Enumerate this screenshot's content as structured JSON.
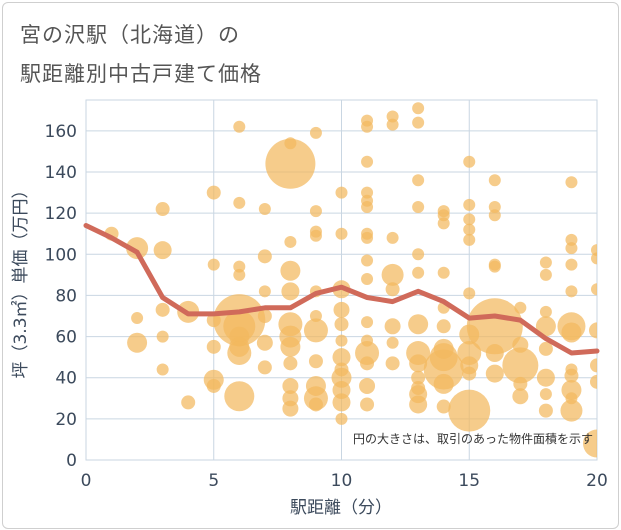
{
  "title_line1": "宮の沢駅（北海道）の",
  "title_line2": "駅距離別中古戸建て価格",
  "chart_data": {
    "type": "scatter",
    "title": "宮の沢駅（北海道）の駅距離別中古戸建て価格",
    "xlabel": "駅距離（分）",
    "ylabel": "坪（3.3㎡）単価（万円）",
    "xlim": [
      0,
      20
    ],
    "ylim": [
      0,
      175
    ],
    "xticks": [
      0,
      5,
      10,
      15,
      20
    ],
    "yticks": [
      0,
      20,
      40,
      60,
      80,
      100,
      120,
      140,
      160
    ],
    "note": "円の大きさは、取引のあった物件面積を示す",
    "colors": {
      "bubble": "#f3b85e",
      "line": "#d06a5a",
      "grid": "#c9d6e2"
    },
    "trend_line": {
      "x": [
        0,
        1,
        2,
        3,
        4,
        5,
        6,
        7,
        8,
        9,
        10,
        11,
        12,
        13,
        14,
        15,
        16,
        17,
        18,
        19,
        20
      ],
      "y": [
        114,
        108,
        101,
        79,
        71,
        71,
        72,
        74,
        74,
        81,
        84,
        79,
        77,
        82,
        77,
        69,
        70,
        68,
        59,
        52,
        53
      ]
    },
    "bubbles": [
      {
        "x": 1,
        "y": 110,
        "s": 7
      },
      {
        "x": 2,
        "y": 103,
        "s": 11
      },
      {
        "x": 2,
        "y": 69,
        "s": 6
      },
      {
        "x": 2,
        "y": 57,
        "s": 10
      },
      {
        "x": 3,
        "y": 122,
        "s": 7
      },
      {
        "x": 3,
        "y": 102,
        "s": 9
      },
      {
        "x": 3,
        "y": 73,
        "s": 7
      },
      {
        "x": 3,
        "y": 60,
        "s": 6
      },
      {
        "x": 3,
        "y": 44,
        "s": 6
      },
      {
        "x": 4,
        "y": 72,
        "s": 11
      },
      {
        "x": 4,
        "y": 28,
        "s": 7
      },
      {
        "x": 5,
        "y": 130,
        "s": 7
      },
      {
        "x": 5,
        "y": 95,
        "s": 6
      },
      {
        "x": 5,
        "y": 68,
        "s": 7
      },
      {
        "x": 5,
        "y": 55,
        "s": 7
      },
      {
        "x": 5,
        "y": 39,
        "s": 10
      },
      {
        "x": 5,
        "y": 36,
        "s": 7
      },
      {
        "x": 6,
        "y": 162,
        "s": 6
      },
      {
        "x": 6,
        "y": 125,
        "s": 6
      },
      {
        "x": 6,
        "y": 94,
        "s": 6
      },
      {
        "x": 6,
        "y": 90,
        "s": 6
      },
      {
        "x": 6,
        "y": 68,
        "s": 26
      },
      {
        "x": 6,
        "y": 65,
        "s": 16
      },
      {
        "x": 6,
        "y": 60,
        "s": 10
      },
      {
        "x": 6,
        "y": 55,
        "s": 10
      },
      {
        "x": 6,
        "y": 52,
        "s": 12
      },
      {
        "x": 6,
        "y": 31,
        "s": 15
      },
      {
        "x": 7,
        "y": 122,
        "s": 6
      },
      {
        "x": 7,
        "y": 99,
        "s": 7
      },
      {
        "x": 7,
        "y": 82,
        "s": 6
      },
      {
        "x": 7,
        "y": 70,
        "s": 7
      },
      {
        "x": 7,
        "y": 57,
        "s": 8
      },
      {
        "x": 7,
        "y": 45,
        "s": 7
      },
      {
        "x": 8,
        "y": 144,
        "s": 25
      },
      {
        "x": 8,
        "y": 154,
        "s": 6
      },
      {
        "x": 8,
        "y": 106,
        "s": 6
      },
      {
        "x": 8,
        "y": 92,
        "s": 10
      },
      {
        "x": 8,
        "y": 82,
        "s": 9
      },
      {
        "x": 8,
        "y": 66,
        "s": 12
      },
      {
        "x": 8,
        "y": 60,
        "s": 11
      },
      {
        "x": 8,
        "y": 55,
        "s": 10
      },
      {
        "x": 8,
        "y": 47,
        "s": 7
      },
      {
        "x": 8,
        "y": 36,
        "s": 8
      },
      {
        "x": 8,
        "y": 30,
        "s": 8
      },
      {
        "x": 8,
        "y": 25,
        "s": 8
      },
      {
        "x": 9,
        "y": 159,
        "s": 6
      },
      {
        "x": 9,
        "y": 121,
        "s": 6
      },
      {
        "x": 9,
        "y": 111,
        "s": 6
      },
      {
        "x": 9,
        "y": 109,
        "s": 6
      },
      {
        "x": 9,
        "y": 82,
        "s": 6
      },
      {
        "x": 9,
        "y": 70,
        "s": 6
      },
      {
        "x": 9,
        "y": 63,
        "s": 12
      },
      {
        "x": 9,
        "y": 48,
        "s": 7
      },
      {
        "x": 9,
        "y": 36,
        "s": 10
      },
      {
        "x": 9,
        "y": 30,
        "s": 12
      },
      {
        "x": 9,
        "y": 27,
        "s": 7
      },
      {
        "x": 10,
        "y": 130,
        "s": 6
      },
      {
        "x": 10,
        "y": 110,
        "s": 6
      },
      {
        "x": 10,
        "y": 83,
        "s": 9
      },
      {
        "x": 10,
        "y": 73,
        "s": 8
      },
      {
        "x": 10,
        "y": 66,
        "s": 7
      },
      {
        "x": 10,
        "y": 58,
        "s": 6
      },
      {
        "x": 10,
        "y": 50,
        "s": 9
      },
      {
        "x": 10,
        "y": 44,
        "s": 7
      },
      {
        "x": 10,
        "y": 40,
        "s": 10
      },
      {
        "x": 10,
        "y": 34,
        "s": 9
      },
      {
        "x": 10,
        "y": 28,
        "s": 9
      },
      {
        "x": 10,
        "y": 20,
        "s": 6
      },
      {
        "x": 11,
        "y": 165,
        "s": 6
      },
      {
        "x": 11,
        "y": 162,
        "s": 6
      },
      {
        "x": 11,
        "y": 145,
        "s": 6
      },
      {
        "x": 11,
        "y": 130,
        "s": 6
      },
      {
        "x": 11,
        "y": 126,
        "s": 6
      },
      {
        "x": 11,
        "y": 123,
        "s": 6
      },
      {
        "x": 11,
        "y": 110,
        "s": 6
      },
      {
        "x": 11,
        "y": 108,
        "s": 6
      },
      {
        "x": 11,
        "y": 97,
        "s": 6
      },
      {
        "x": 11,
        "y": 88,
        "s": 6
      },
      {
        "x": 11,
        "y": 67,
        "s": 6
      },
      {
        "x": 11,
        "y": 58,
        "s": 6
      },
      {
        "x": 11,
        "y": 52,
        "s": 12
      },
      {
        "x": 11,
        "y": 47,
        "s": 7
      },
      {
        "x": 11,
        "y": 36,
        "s": 8
      },
      {
        "x": 11,
        "y": 27,
        "s": 7
      },
      {
        "x": 12,
        "y": 167,
        "s": 6
      },
      {
        "x": 12,
        "y": 163,
        "s": 6
      },
      {
        "x": 12,
        "y": 108,
        "s": 6
      },
      {
        "x": 12,
        "y": 90,
        "s": 11
      },
      {
        "x": 12,
        "y": 83,
        "s": 7
      },
      {
        "x": 12,
        "y": 65,
        "s": 8
      },
      {
        "x": 12,
        "y": 57,
        "s": 6
      },
      {
        "x": 12,
        "y": 47,
        "s": 7
      },
      {
        "x": 13,
        "y": 171,
        "s": 6
      },
      {
        "x": 13,
        "y": 164,
        "s": 6
      },
      {
        "x": 13,
        "y": 136,
        "s": 6
      },
      {
        "x": 13,
        "y": 123,
        "s": 6
      },
      {
        "x": 13,
        "y": 100,
        "s": 6
      },
      {
        "x": 13,
        "y": 91,
        "s": 6
      },
      {
        "x": 13,
        "y": 66,
        "s": 10
      },
      {
        "x": 13,
        "y": 52,
        "s": 12
      },
      {
        "x": 13,
        "y": 47,
        "s": 9
      },
      {
        "x": 13,
        "y": 40,
        "s": 7
      },
      {
        "x": 13,
        "y": 35,
        "s": 7
      },
      {
        "x": 13,
        "y": 32,
        "s": 9
      },
      {
        "x": 13,
        "y": 27,
        "s": 9
      },
      {
        "x": 14,
        "y": 121,
        "s": 6
      },
      {
        "x": 14,
        "y": 119,
        "s": 6
      },
      {
        "x": 14,
        "y": 115,
        "s": 6
      },
      {
        "x": 14,
        "y": 91,
        "s": 6
      },
      {
        "x": 14,
        "y": 74,
        "s": 6
      },
      {
        "x": 14,
        "y": 65,
        "s": 7
      },
      {
        "x": 14,
        "y": 54,
        "s": 10
      },
      {
        "x": 14,
        "y": 50,
        "s": 14
      },
      {
        "x": 14,
        "y": 44,
        "s": 20
      },
      {
        "x": 14,
        "y": 37,
        "s": 10
      },
      {
        "x": 14,
        "y": 26,
        "s": 7
      },
      {
        "x": 15,
        "y": 145,
        "s": 6
      },
      {
        "x": 15,
        "y": 124,
        "s": 6
      },
      {
        "x": 15,
        "y": 117,
        "s": 6
      },
      {
        "x": 15,
        "y": 112,
        "s": 6
      },
      {
        "x": 15,
        "y": 107,
        "s": 6
      },
      {
        "x": 15,
        "y": 81,
        "s": 6
      },
      {
        "x": 15,
        "y": 61,
        "s": 10
      },
      {
        "x": 15,
        "y": 52,
        "s": 12
      },
      {
        "x": 15,
        "y": 46,
        "s": 9
      },
      {
        "x": 15,
        "y": 42,
        "s": 7
      },
      {
        "x": 15,
        "y": 24,
        "s": 21
      },
      {
        "x": 16,
        "y": 136,
        "s": 6
      },
      {
        "x": 16,
        "y": 123,
        "s": 6
      },
      {
        "x": 16,
        "y": 119,
        "s": 6
      },
      {
        "x": 16,
        "y": 95,
        "s": 6
      },
      {
        "x": 16,
        "y": 94,
        "s": 6
      },
      {
        "x": 16,
        "y": 65,
        "s": 28
      },
      {
        "x": 16,
        "y": 52,
        "s": 9
      },
      {
        "x": 16,
        "y": 42,
        "s": 9
      },
      {
        "x": 17,
        "y": 74,
        "s": 6
      },
      {
        "x": 17,
        "y": 56,
        "s": 8
      },
      {
        "x": 17,
        "y": 46,
        "s": 18
      },
      {
        "x": 17,
        "y": 37,
        "s": 7
      },
      {
        "x": 17,
        "y": 31,
        "s": 8
      },
      {
        "x": 18,
        "y": 96,
        "s": 6
      },
      {
        "x": 18,
        "y": 90,
        "s": 6
      },
      {
        "x": 18,
        "y": 72,
        "s": 6
      },
      {
        "x": 18,
        "y": 65,
        "s": 10
      },
      {
        "x": 18,
        "y": 54,
        "s": 7
      },
      {
        "x": 18,
        "y": 40,
        "s": 9
      },
      {
        "x": 18,
        "y": 32,
        "s": 6
      },
      {
        "x": 18,
        "y": 24,
        "s": 7
      },
      {
        "x": 19,
        "y": 135,
        "s": 6
      },
      {
        "x": 19,
        "y": 107,
        "s": 6
      },
      {
        "x": 19,
        "y": 103,
        "s": 6
      },
      {
        "x": 19,
        "y": 95,
        "s": 6
      },
      {
        "x": 19,
        "y": 82,
        "s": 6
      },
      {
        "x": 19,
        "y": 65,
        "s": 14
      },
      {
        "x": 19,
        "y": 62,
        "s": 10
      },
      {
        "x": 19,
        "y": 44,
        "s": 6
      },
      {
        "x": 19,
        "y": 41,
        "s": 7
      },
      {
        "x": 19,
        "y": 34,
        "s": 10
      },
      {
        "x": 19,
        "y": 30,
        "s": 6
      },
      {
        "x": 19,
        "y": 24,
        "s": 11
      },
      {
        "x": 20,
        "y": 102,
        "s": 6
      },
      {
        "x": 20,
        "y": 98,
        "s": 6
      },
      {
        "x": 20,
        "y": 83,
        "s": 6
      },
      {
        "x": 20,
        "y": 63,
        "s": 8
      },
      {
        "x": 20,
        "y": 46,
        "s": 7
      },
      {
        "x": 20,
        "y": 38,
        "s": 7
      },
      {
        "x": 20,
        "y": 8,
        "s": 14
      }
    ]
  }
}
